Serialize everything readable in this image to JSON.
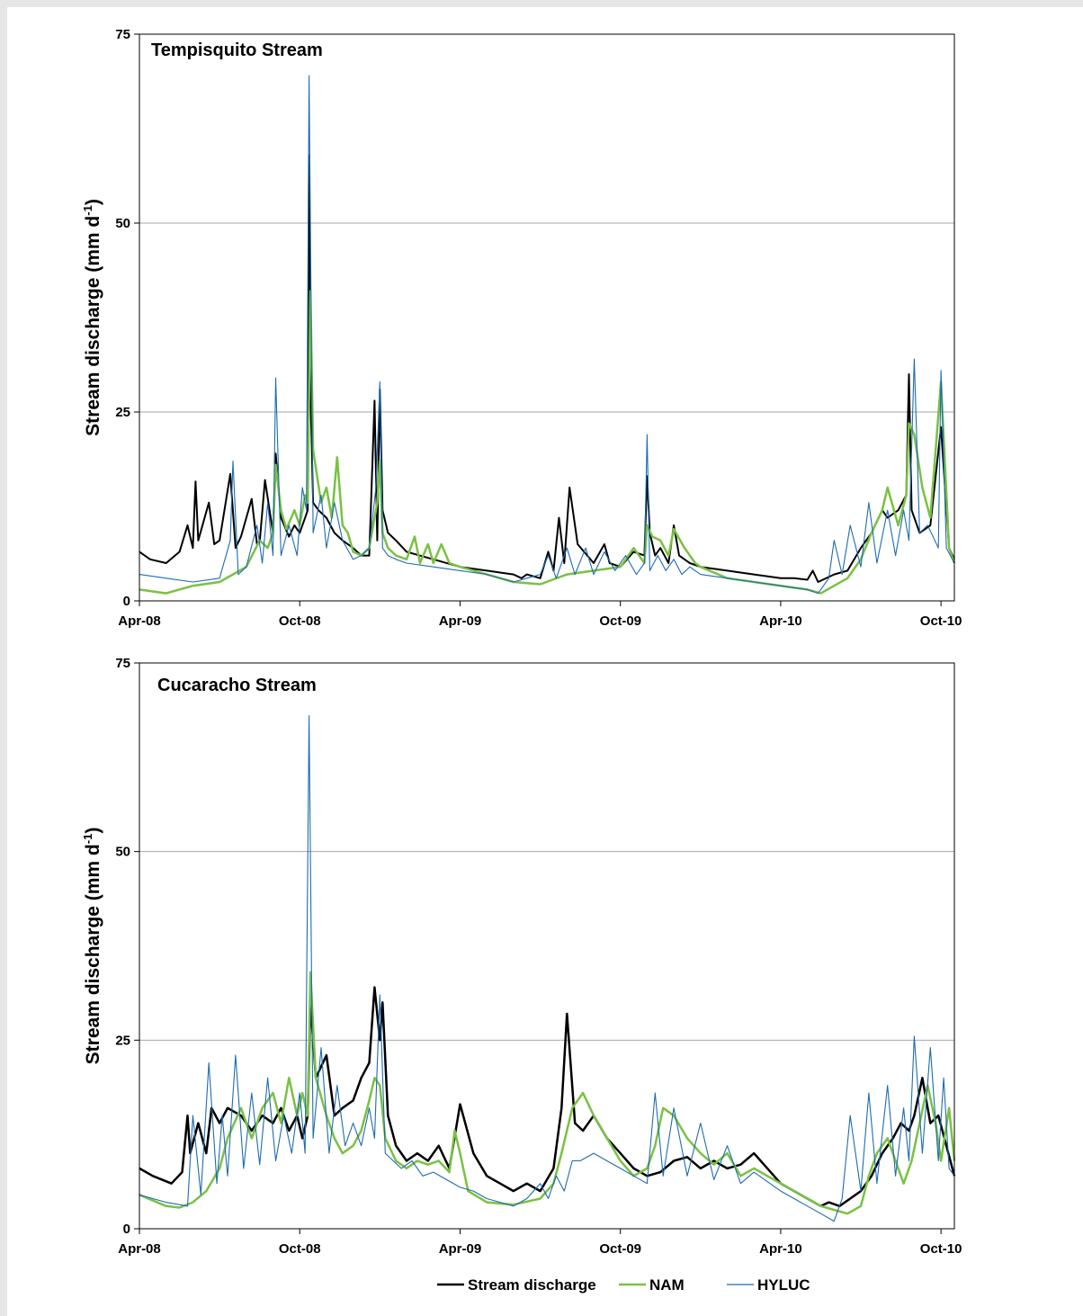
{
  "chart_data": [
    {
      "type": "line",
      "title": "Tempisquito Stream",
      "ylabel": "Stream discharge (mm d",
      "ylabel_sup": "-1",
      "ylabel_close": ")",
      "ylim": [
        0,
        75
      ],
      "yticks": [
        0,
        25,
        50,
        75
      ],
      "grid": "horizontal",
      "x_ticks": [
        "Apr-08",
        "Oct-08",
        "Apr-09",
        "Oct-09",
        "Apr-10",
        "Oct-10"
      ],
      "x_unit": "months since Apr-08",
      "x_range": [
        0,
        30.5
      ],
      "series": [
        {
          "name": "Stream discharge",
          "color": "#000000",
          "width": 2,
          "x": [
            0,
            0.4,
            1.0,
            1.5,
            1.8,
            2.0,
            2.1,
            2.2,
            2.6,
            2.8,
            3.0,
            3.4,
            3.6,
            3.8,
            4.2,
            4.4,
            4.5,
            4.7,
            5.0,
            5.1,
            5.3,
            5.6,
            5.8,
            6.0,
            6.2,
            6.3,
            6.35,
            6.4,
            6.5,
            6.7,
            7.0,
            7.3,
            7.6,
            8.0,
            8.3,
            8.6,
            8.8,
            8.9,
            9.0,
            9.1,
            9.3,
            9.6,
            10.0,
            11,
            12,
            13,
            14,
            14.3,
            14.5,
            15.0,
            15.3,
            15.5,
            15.7,
            15.9,
            16.1,
            16.4,
            17.0,
            17.4,
            17.6,
            18.0,
            18.5,
            18.9,
            19.0,
            19.1,
            19.3,
            19.5,
            19.8,
            20.0,
            20.2,
            20.6,
            21.0,
            22,
            23,
            24,
            24.5,
            25.0,
            25.2,
            25.4,
            26.0,
            26.5,
            27.0,
            27.4,
            27.8,
            28.0,
            28.4,
            28.7,
            28.8,
            28.9,
            29.2,
            29.6,
            30.0,
            30.3,
            30.5
          ],
          "values": [
            6.5,
            5.5,
            5.0,
            6.5,
            10.0,
            7.0,
            15.8,
            8.0,
            13.0,
            7.5,
            8.0,
            16.8,
            7.0,
            8.5,
            13.5,
            7.5,
            7.8,
            16.0,
            9.0,
            19.5,
            11.0,
            8.5,
            10.0,
            9.0,
            11.0,
            12.0,
            59.0,
            28.0,
            13.0,
            12.0,
            11.0,
            9.0,
            8.0,
            7.0,
            6.0,
            6.0,
            26.5,
            8.0,
            28.0,
            12.0,
            9.0,
            8.0,
            6.5,
            5.5,
            4.5,
            4.0,
            3.5,
            3.0,
            3.5,
            3.0,
            6.5,
            4.0,
            11.0,
            5.0,
            15.0,
            7.5,
            5.0,
            7.5,
            5.0,
            4.5,
            6.5,
            6.0,
            16.5,
            9.0,
            6.0,
            7.0,
            5.0,
            10.0,
            6.0,
            5.0,
            4.5,
            4.0,
            3.5,
            3.0,
            3.0,
            2.8,
            4.0,
            2.5,
            3.5,
            4.0,
            7.0,
            9.0,
            12.0,
            11.0,
            12.0,
            14.0,
            30.0,
            12.0,
            9.0,
            10.0,
            23.0,
            7.0,
            5.5
          ]
        },
        {
          "name": "NAM",
          "color": "#7ac143",
          "width": 2.5,
          "x": [
            0,
            1.0,
            2.0,
            3.0,
            3.5,
            4.0,
            4.5,
            4.8,
            5.0,
            5.1,
            5.3,
            5.5,
            5.8,
            6.0,
            6.2,
            6.3,
            6.4,
            6.5,
            6.8,
            7.0,
            7.2,
            7.4,
            7.6,
            7.8,
            8.0,
            8.3,
            8.6,
            8.9,
            9.0,
            9.1,
            9.3,
            9.6,
            10.0,
            10.3,
            10.5,
            10.8,
            11.0,
            11.3,
            11.6,
            12,
            13,
            14,
            15,
            16,
            17,
            18,
            18.5,
            18.9,
            19.0,
            19.2,
            19.5,
            19.8,
            20.0,
            20.4,
            20.8,
            21.0,
            22,
            23,
            24,
            25,
            25.5,
            26.0,
            26.5,
            27.0,
            27.4,
            27.8,
            28.0,
            28.4,
            28.7,
            28.8,
            29.0,
            29.3,
            29.6,
            30.0,
            30.3,
            30.5
          ],
          "values": [
            1.5,
            1.0,
            2.0,
            2.5,
            3.5,
            4.5,
            8.0,
            7.0,
            9.0,
            18.0,
            12.0,
            9.5,
            12.0,
            10.0,
            14.0,
            13.0,
            41.0,
            20.0,
            13.0,
            15.0,
            11.0,
            19.0,
            10.0,
            9.0,
            6.5,
            6.0,
            7.0,
            13.0,
            18.5,
            9.0,
            7.0,
            6.0,
            5.5,
            8.5,
            5.0,
            7.5,
            5.0,
            7.5,
            5.0,
            4.5,
            3.5,
            2.5,
            2.2,
            3.5,
            4.0,
            4.5,
            7.0,
            5.0,
            10.0,
            8.5,
            8.0,
            6.0,
            9.5,
            7.0,
            5.0,
            4.5,
            3.0,
            2.5,
            2.0,
            1.5,
            1.0,
            2.0,
            3.0,
            5.5,
            9.0,
            12.0,
            15.0,
            10.0,
            14.0,
            23.5,
            22.0,
            15.0,
            11.0,
            29.0,
            7.0,
            5.0
          ]
        },
        {
          "name": "HYLUC",
          "color": "#1f6bb0",
          "width": 1.1,
          "x": [
            0,
            1.0,
            2.0,
            3.0,
            3.4,
            3.5,
            3.7,
            4.0,
            4.4,
            4.6,
            4.8,
            5.0,
            5.1,
            5.3,
            5.6,
            5.9,
            6.1,
            6.25,
            6.35,
            6.5,
            6.8,
            7.0,
            7.3,
            7.6,
            8.0,
            8.3,
            8.6,
            8.85,
            9.0,
            9.1,
            9.3,
            9.6,
            10,
            11,
            12,
            13,
            14,
            14.5,
            15.0,
            15.3,
            15.6,
            16.0,
            16.3,
            16.7,
            17.0,
            17.4,
            17.8,
            18.2,
            18.6,
            18.9,
            19.0,
            19.1,
            19.4,
            19.7,
            20.0,
            20.3,
            20.6,
            21,
            22,
            23,
            24,
            25,
            25.4,
            25.8,
            26.0,
            26.3,
            26.6,
            27.0,
            27.3,
            27.6,
            28.0,
            28.3,
            28.6,
            28.8,
            29.0,
            29.2,
            29.5,
            29.9,
            30.0,
            30.2,
            30.5
          ],
          "values": [
            3.5,
            3.0,
            2.5,
            3.0,
            8.0,
            18.5,
            3.5,
            4.5,
            10.0,
            5.0,
            13.0,
            6.0,
            29.5,
            6.0,
            10.0,
            6.0,
            15.0,
            12.0,
            69.5,
            9.0,
            14.0,
            7.0,
            13.0,
            8.0,
            5.5,
            6.0,
            7.0,
            15.0,
            29.0,
            7.0,
            6.0,
            5.5,
            5.0,
            4.5,
            4.0,
            3.5,
            2.5,
            3.0,
            3.5,
            6.0,
            3.0,
            7.0,
            3.5,
            7.0,
            3.5,
            6.5,
            4.0,
            6.0,
            3.5,
            5.0,
            22.0,
            4.0,
            6.0,
            4.0,
            5.5,
            3.5,
            4.5,
            3.5,
            3.0,
            2.5,
            2.0,
            1.5,
            1.0,
            3.0,
            8.0,
            3.5,
            10.0,
            4.5,
            13.0,
            5.0,
            12.0,
            6.0,
            12.0,
            8.0,
            32.0,
            9.0,
            10.0,
            7.0,
            30.5,
            7.0,
            5.0
          ]
        }
      ]
    },
    {
      "type": "line",
      "title": "Cucaracho Stream",
      "ylabel": "Stream discharge (mm d",
      "ylabel_sup": "-1",
      "ylabel_close": ")",
      "ylim": [
        0,
        75
      ],
      "yticks": [
        0,
        25,
        50,
        75
      ],
      "grid": "horizontal",
      "x_ticks": [
        "Apr-08",
        "Oct-08",
        "Apr-09",
        "Oct-09",
        "Apr-10",
        "Oct-10"
      ],
      "x_unit": "months since Apr-08",
      "x_range": [
        0,
        30.5
      ],
      "series": [
        {
          "name": "Stream discharge",
          "color": "#000000",
          "width": 2.5,
          "x": [
            0,
            0.5,
            1.2,
            1.6,
            1.8,
            1.9,
            2.2,
            2.5,
            2.7,
            3.0,
            3.3,
            3.8,
            4.2,
            4.6,
            5.0,
            5.3,
            5.6,
            5.9,
            6.1,
            6.3,
            6.4,
            6.6,
            7.0,
            7.3,
            7.6,
            8.0,
            8.3,
            8.6,
            8.8,
            9.0,
            9.1,
            9.3,
            9.6,
            10.0,
            10.4,
            10.8,
            11.2,
            11.6,
            12.0,
            12.5,
            13.0,
            13.5,
            14.0,
            14.5,
            15.0,
            15.5,
            15.8,
            16.0,
            16.3,
            16.6,
            17.0,
            17.5,
            18.0,
            18.5,
            19.0,
            19.5,
            20.0,
            20.5,
            21.0,
            21.5,
            22,
            22.5,
            23,
            24,
            25,
            25.5,
            25.8,
            26.2,
            26.6,
            27.0,
            27.4,
            27.8,
            28.2,
            28.5,
            28.8,
            29.0,
            29.3,
            29.6,
            29.9,
            30.2,
            30.5
          ],
          "values": [
            8.0,
            7.0,
            6.0,
            7.5,
            15.0,
            10.0,
            14.0,
            10.0,
            16.0,
            14.0,
            16.0,
            15.0,
            13.0,
            15.0,
            14.0,
            16.0,
            13.0,
            15.0,
            12.0,
            15.0,
            30.0,
            20.0,
            23.0,
            15.0,
            16.0,
            17.0,
            20.0,
            22.0,
            32.0,
            25.0,
            30.0,
            15.0,
            11.0,
            9.0,
            10.0,
            9.0,
            11.0,
            8.0,
            16.5,
            10.0,
            7.0,
            6.0,
            5.0,
            6.0,
            5.0,
            8.0,
            16.0,
            28.5,
            14.0,
            13.0,
            15.0,
            12.0,
            10.0,
            8.0,
            7.0,
            7.5,
            9.0,
            9.5,
            8.0,
            9.0,
            8.0,
            8.5,
            10.0,
            6.0,
            4.0,
            3.0,
            3.5,
            3.0,
            4.0,
            5.0,
            7.0,
            10.0,
            12.0,
            14.0,
            13.0,
            15.0,
            20.0,
            14.0,
            15.0,
            11.0,
            7.0
          ]
        },
        {
          "name": "NAM",
          "color": "#7ac143",
          "width": 2.5,
          "x": [
            0,
            1.0,
            1.5,
            2.0,
            2.5,
            3.0,
            3.3,
            3.8,
            4.2,
            4.6,
            5.0,
            5.3,
            5.6,
            5.9,
            6.1,
            6.3,
            6.4,
            6.6,
            7.0,
            7.3,
            7.6,
            8.0,
            8.3,
            8.6,
            8.8,
            9.0,
            9.2,
            9.6,
            10.0,
            10.4,
            10.8,
            11.2,
            11.6,
            11.8,
            12.0,
            12.3,
            13.0,
            14.0,
            15.0,
            15.5,
            15.8,
            16.2,
            16.6,
            17.0,
            17.5,
            18.0,
            18.5,
            19.0,
            19.3,
            19.6,
            20.0,
            20.5,
            21.0,
            21.5,
            22.0,
            22.5,
            23.0,
            24,
            25,
            25.5,
            26.0,
            26.5,
            27.0,
            27.3,
            27.6,
            28.0,
            28.3,
            28.6,
            28.9,
            29.2,
            29.5,
            29.8,
            30.0,
            30.3,
            30.5
          ],
          "values": [
            4.5,
            3.0,
            2.8,
            3.5,
            5.0,
            8.0,
            12.0,
            16.0,
            12.0,
            16.0,
            18.0,
            14.0,
            20.0,
            15.0,
            18.0,
            15.0,
            34.0,
            20.0,
            15.0,
            12.0,
            10.0,
            11.0,
            13.0,
            17.0,
            20.0,
            19.0,
            12.0,
            9.0,
            8.0,
            9.0,
            8.5,
            9.0,
            7.5,
            13.0,
            10.0,
            5.0,
            3.5,
            3.2,
            4.0,
            6.0,
            10.0,
            16.0,
            18.0,
            15.0,
            12.0,
            9.0,
            7.0,
            8.0,
            11.0,
            16.0,
            15.0,
            12.0,
            10.0,
            8.5,
            10.0,
            7.0,
            8.0,
            6.0,
            4.0,
            3.0,
            2.5,
            2.0,
            3.0,
            7.0,
            10.0,
            12.0,
            9.0,
            6.0,
            9.0,
            14.0,
            19.0,
            14.0,
            9.0,
            16.0,
            9.0
          ]
        },
        {
          "name": "HYLUC",
          "color": "#1f6bb0",
          "width": 1.1,
          "x": [
            0,
            1.0,
            1.8,
            2.0,
            2.3,
            2.6,
            2.9,
            3.1,
            3.3,
            3.6,
            3.9,
            4.2,
            4.5,
            4.8,
            5.1,
            5.4,
            5.7,
            6.0,
            6.2,
            6.35,
            6.5,
            6.8,
            7.1,
            7.4,
            7.7,
            8.0,
            8.3,
            8.6,
            8.8,
            9.0,
            9.2,
            9.5,
            9.8,
            10.2,
            10.6,
            11.0,
            11.5,
            12.0,
            12.5,
            13.0,
            13.5,
            14.0,
            14.5,
            15.0,
            15.3,
            15.6,
            15.9,
            16.2,
            16.5,
            17.0,
            17.5,
            18.0,
            18.5,
            19.0,
            19.3,
            19.6,
            20.0,
            20.5,
            21.0,
            21.5,
            22.0,
            22.5,
            23.0,
            24,
            25,
            25.5,
            26.0,
            26.3,
            26.6,
            27.0,
            27.3,
            27.6,
            28.0,
            28.3,
            28.6,
            28.8,
            29.0,
            29.3,
            29.6,
            29.9,
            30.1,
            30.3,
            30.5
          ],
          "values": [
            4.5,
            3.5,
            3.0,
            15.0,
            4.5,
            22.0,
            6.0,
            15.0,
            7.0,
            23.0,
            8.0,
            18.0,
            8.5,
            20.0,
            9.0,
            15.0,
            10.0,
            18.0,
            10.0,
            68.0,
            12.0,
            24.0,
            10.0,
            19.0,
            11.0,
            14.0,
            11.0,
            16.0,
            12.0,
            31.0,
            10.0,
            9.0,
            8.0,
            9.0,
            7.0,
            7.5,
            6.5,
            5.5,
            5.0,
            4.0,
            3.5,
            3.0,
            4.0,
            6.0,
            4.0,
            7.0,
            5.0,
            9.0,
            9.0,
            10.0,
            9.0,
            8.0,
            7.0,
            6.0,
            18.0,
            7.0,
            16.0,
            7.0,
            14.0,
            6.5,
            11.0,
            6.0,
            7.5,
            5.0,
            3.0,
            2.0,
            1.0,
            4.0,
            15.0,
            5.0,
            18.0,
            6.0,
            19.0,
            7.0,
            16.0,
            9.0,
            25.5,
            10.0,
            24.0,
            9.0,
            20.0,
            8.0,
            7.0
          ]
        }
      ]
    }
  ],
  "legend": [
    {
      "label": "Stream discharge",
      "color": "#000000",
      "width": 2.5
    },
    {
      "label": "NAM",
      "color": "#7ac143",
      "width": 2.5
    },
    {
      "label": "HYLUC",
      "color": "#1f6bb0",
      "width": 1.2
    }
  ]
}
